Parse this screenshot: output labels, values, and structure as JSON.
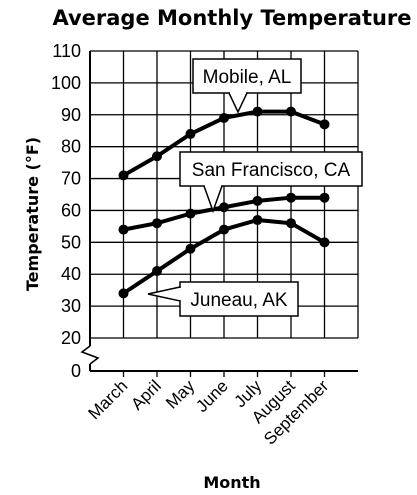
{
  "chart_data": {
    "type": "line",
    "title": "Average Monthly Temperature",
    "xlabel": "Month",
    "ylabel": "Temperature (°F)",
    "categories": [
      "March",
      "April",
      "May",
      "June",
      "July",
      "August",
      "September"
    ],
    "y_ticks": [
      "0",
      "20",
      "30",
      "40",
      "50",
      "60",
      "70",
      "80",
      "90",
      "100",
      "110"
    ],
    "ylim": [
      20,
      110
    ],
    "axis_break": true,
    "grid": true,
    "series": [
      {
        "name": "Mobile, AL",
        "values": [
          71,
          77,
          84,
          89,
          91,
          91,
          87
        ]
      },
      {
        "name": "San Francisco, CA",
        "values": [
          54,
          56,
          59,
          61,
          63,
          64,
          64
        ]
      },
      {
        "name": "Juneau, AK",
        "values": [
          34,
          41,
          48,
          54,
          57,
          56,
          50
        ]
      }
    ],
    "colors": {
      "line": "#000000",
      "grid": "#000000",
      "background": "#ffffff"
    }
  }
}
